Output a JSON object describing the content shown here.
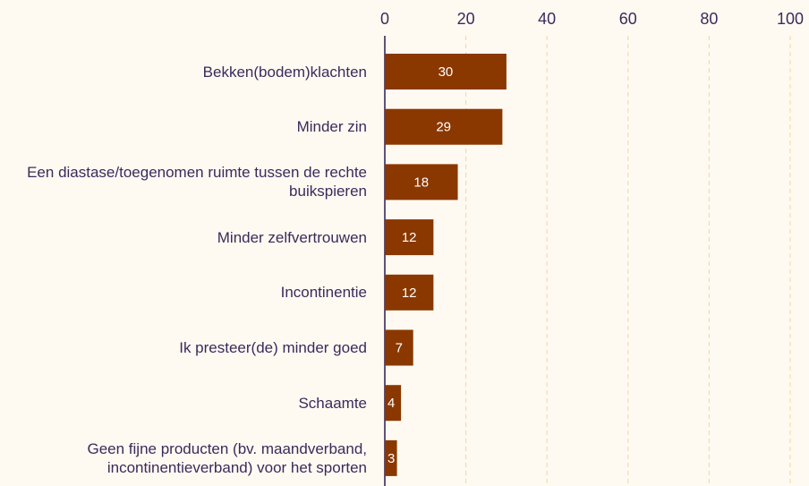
{
  "chart_data": {
    "type": "bar",
    "orientation": "horizontal",
    "categories": [
      "Bekken(bodem)klachten",
      "Minder zin",
      "Een diastase/toegenomen ruimte tussen de rechte buikspieren",
      "Minder zelfvertrouwen",
      "Incontinentie",
      "Ik presteer(de) minder goed",
      "Schaamte",
      "Geen fijne producten (bv. maandverband, incontinentieverband) voor het sporten"
    ],
    "values": [
      30,
      29,
      18,
      12,
      12,
      7,
      4,
      3
    ],
    "color": "#8a3800",
    "xlim": [
      0,
      100
    ],
    "xticks": [
      0,
      20,
      40,
      60,
      80,
      100
    ],
    "grid": true
  }
}
